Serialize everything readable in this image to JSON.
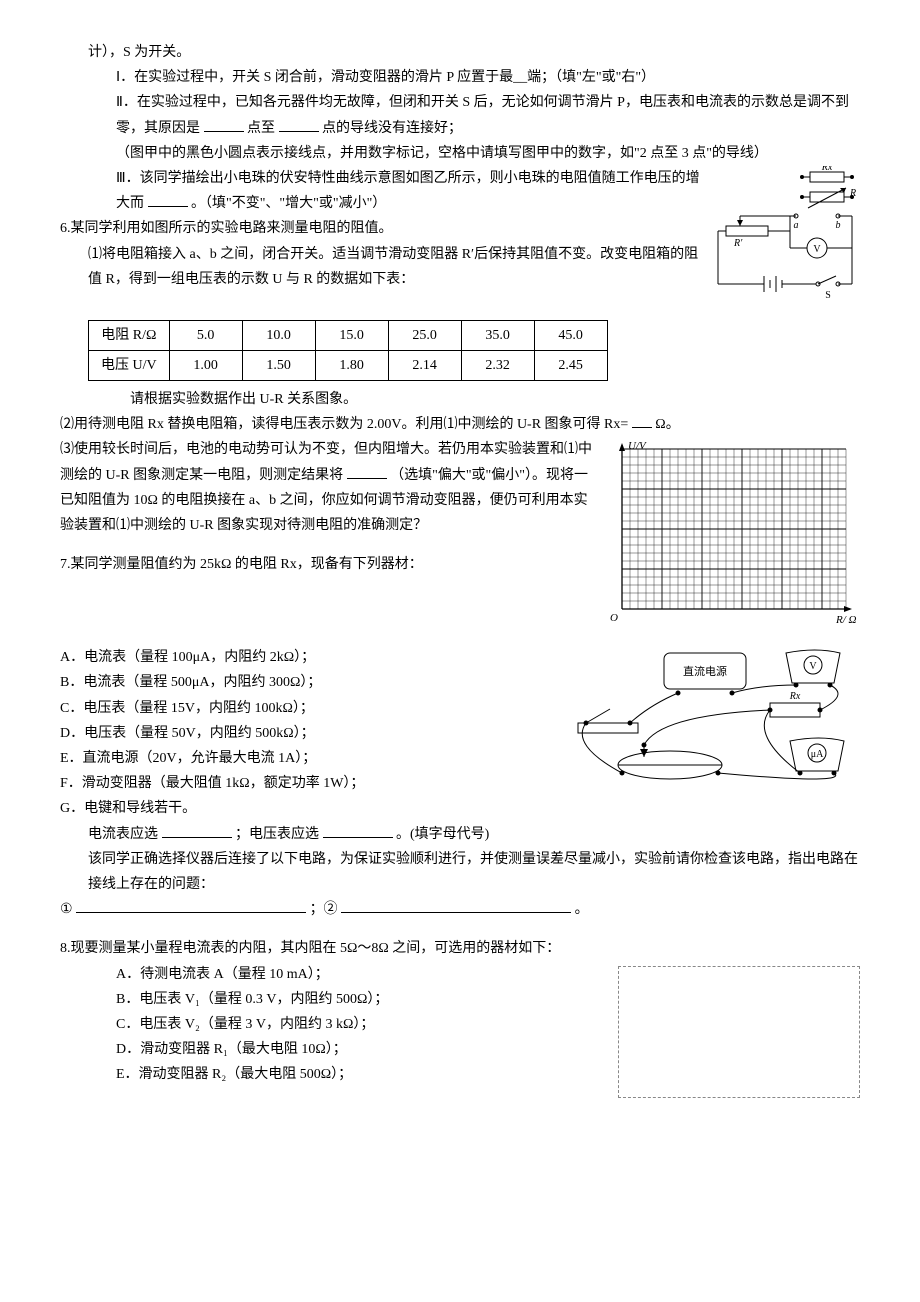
{
  "intro_line": "计），S 为开关。",
  "q5": {
    "i": "Ⅰ．在实验过程中，开关 S 闭合前，滑动变阻器的滑片 P 应置于最__端；（填\"左\"或\"右\"）",
    "ii_a": "Ⅱ．在实验过程中，已知各元器件均无故障，但闭和开关 S 后，无论如何调节滑片 P，电压表和电流表的示数总是调不到零，其原因是",
    "ii_b": "点至",
    "ii_c": "点的导线没有连接好；",
    "ii_note": "（图甲中的黑色小圆点表示接线点，并用数字标记，空格中请填写图甲中的数字，如\"2 点至 3 点\"的导线）",
    "iii_a": "Ⅲ．该同学描绘出小电珠的伏安特性曲线示意图如图乙所示，则小电珠的电阻值随工作电压的增大而",
    "iii_b": "。（填\"不变\"、\"增大\"或\"减小\"）"
  },
  "q6": {
    "title": "6.某同学利用如图所示的实验电路来测量电阻的阻值。",
    "p1": "⑴将电阻箱接入 a、b 之间，闭合开关。适当调节滑动变阻器 R′后保持其阻值不变。改变电阻箱的阻值 R，得到一组电压表的示数 U 与 R 的数据如下表：",
    "table": {
      "row1": [
        "电阻 R/Ω",
        "5.0",
        "10.0",
        "15.0",
        "25.0",
        "35.0",
        "45.0"
      ],
      "row2": [
        "电压 U/V",
        "1.00",
        "1.50",
        "1.80",
        "2.14",
        "2.32",
        "2.45"
      ]
    },
    "p1b": "请根据实验数据作出 U-R 关系图象。",
    "p2a": "⑵用待测电阻 Rx 替换电阻箱，读得电压表示数为 2.00V。利用⑴中测绘的 U-R 图象可得 Rx=",
    "p2b": "Ω。",
    "p3a": "⑶使用较长时间后，电池的电动势可认为不变，但内阻增大。若仍用本实验装置和⑴中测绘的 U-R 图象测定某一电阻，则测定结果将",
    "p3b": "（选填\"偏大\"或\"偏小\"）。现将一已知阻值为 10Ω 的电阻换接在 a、b 之间，你应如何调节滑动变阻器，便仍可利用本实验装置和⑴中测绘的 U-R 图象实现对待测电阻的准确测定？",
    "circuit": {
      "Rx": "Rx",
      "R": "R",
      "Rp": "R′",
      "a": "a",
      "b": "b",
      "V": "V",
      "S": "S"
    },
    "grid": {
      "ylabel": "U/V",
      "xlabel": "R/ Ω",
      "origin": "O",
      "rows": 20,
      "cols": 28,
      "cell": 8
    }
  },
  "q7": {
    "title": "7.某同学测量阻值约为 25kΩ 的电阻 Rx，现备有下列器材：",
    "items": [
      "A．电流表（量程 100μA，内阻约 2kΩ）；",
      "B．电流表（量程 500μA，内阻约 300Ω）；",
      "C．电压表（量程 15V，内阻约 100kΩ）；",
      "D．电压表（量程 50V，内阻约 500kΩ）；",
      "E．直流电源（20V，允许最大电流 1A）；",
      "F．滑动变阻器（最大阻值 1kΩ，额定功率 1W）；",
      "G．电键和导线若干。"
    ],
    "sel_a": "电流表应选",
    "sel_b": "；电压表应选",
    "sel_c": "。(填字母代号)",
    "check": "该同学正确选择仪器后连接了以下电路，为保证实验顺利进行，并使测量误差尽量减小，实验前请你检查该电路，指出电路在接线上存在的问题：",
    "n1": "①",
    "n2": "；②",
    "end": "。",
    "fig": {
      "psu": "直流电源",
      "V": "V",
      "uA": "μA",
      "Rx": "Rx"
    }
  },
  "q8": {
    "title": "8.现要测量某小量程电流表的内阻，其内阻在 5Ω～8Ω 之间，可选用的器材如下：",
    "items": [
      "A．待测电流表 A（量程 10 mA）；",
      "B．电压表 V₁（量程 0.3 V，内阻约 500Ω）；",
      "C．电压表 V₂（量程 3 V，内阻约 3 kΩ）；",
      "D．滑动变阻器 R₁（最大电阻 10Ω）；",
      "E．滑动变阻器 R₂（最大电阻 500Ω）；"
    ]
  },
  "colors": {
    "text": "#000000",
    "grid": "#000000",
    "dashed": "#888888"
  }
}
